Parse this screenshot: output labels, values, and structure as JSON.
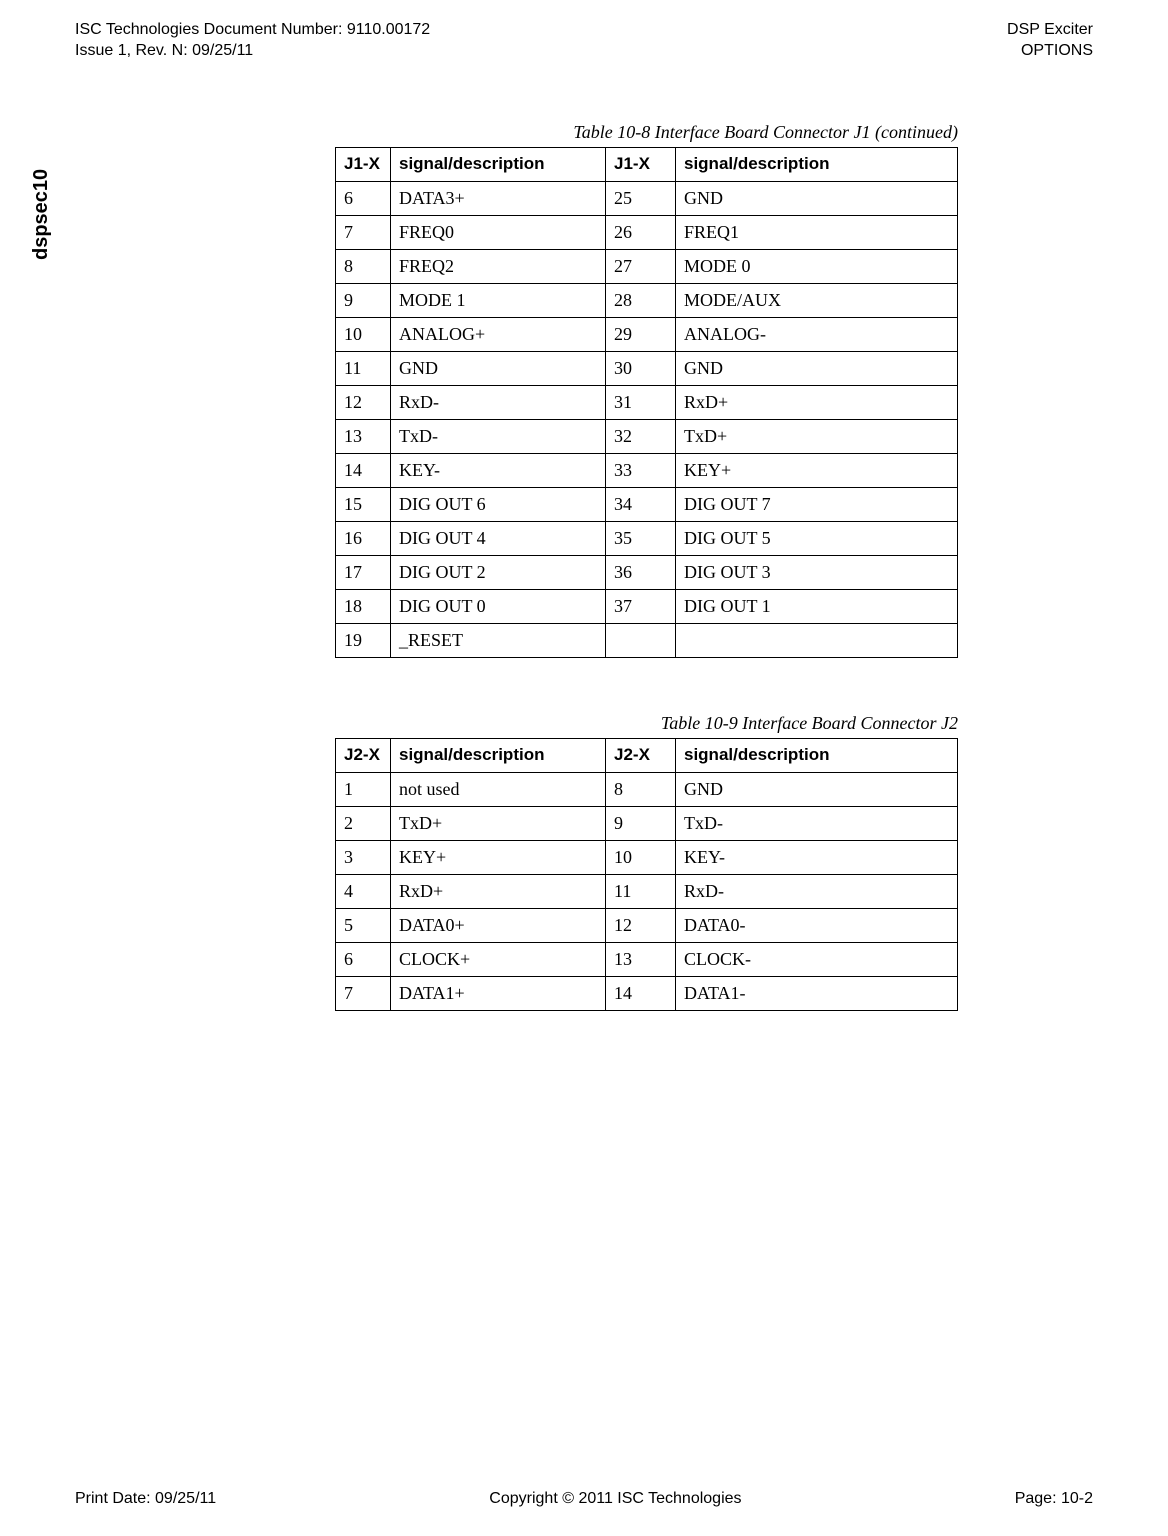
{
  "header": {
    "doc_line1": "ISC Technologies Document Number: 9110.00172",
    "doc_line2": "Issue 1, Rev. N: 09/25/11",
    "title_line1": "DSP Exciter",
    "title_line2": "OPTIONS"
  },
  "side_label": "dspsec10",
  "table1": {
    "caption": "Table 10-8 Interface Board Connector J1 (continued)",
    "headers": [
      "J1-X",
      "signal/description",
      "J1-X",
      "signal/description"
    ],
    "rows": [
      [
        "6",
        "DATA3+",
        "25",
        "GND"
      ],
      [
        "7",
        "FREQ0",
        "26",
        "FREQ1"
      ],
      [
        "8",
        "FREQ2",
        "27",
        "MODE 0"
      ],
      [
        "9",
        "MODE 1",
        "28",
        "MODE/AUX"
      ],
      [
        "10",
        "ANALOG+",
        "29",
        "ANALOG-"
      ],
      [
        "11",
        "GND",
        "30",
        "GND"
      ],
      [
        "12",
        "RxD-",
        "31",
        "RxD+"
      ],
      [
        "13",
        "TxD-",
        "32",
        "TxD+"
      ],
      [
        "14",
        "KEY-",
        "33",
        "KEY+"
      ],
      [
        "15",
        "DIG OUT 6",
        "34",
        "DIG OUT 7"
      ],
      [
        "16",
        "DIG OUT 4",
        "35",
        "DIG OUT 5"
      ],
      [
        "17",
        "DIG OUT 2",
        "36",
        "DIG OUT 3"
      ],
      [
        "18",
        "DIG OUT 0",
        "37",
        "DIG OUT 1"
      ],
      [
        "19",
        "_RESET",
        "",
        ""
      ]
    ]
  },
  "table2": {
    "caption": "Table 10-9 Interface Board Connector J2",
    "headers": [
      "J2-X",
      "signal/description",
      "J2-X",
      "signal/description"
    ],
    "rows": [
      [
        "1",
        "not used",
        "8",
        "GND"
      ],
      [
        "2",
        "TxD+",
        "9",
        "TxD-"
      ],
      [
        "3",
        "KEY+",
        "10",
        "KEY-"
      ],
      [
        "4",
        "RxD+",
        "11",
        "RxD-"
      ],
      [
        "5",
        "DATA0+",
        "12",
        "DATA0-"
      ],
      [
        "6",
        "CLOCK+",
        "13",
        "CLOCK-"
      ],
      [
        "7",
        "DATA1+",
        "14",
        "DATA1-"
      ]
    ]
  },
  "footer": {
    "left": "Print Date: 09/25/11",
    "center": "Copyright © 2011 ISC Technologies",
    "right": "Page: 10-2"
  }
}
